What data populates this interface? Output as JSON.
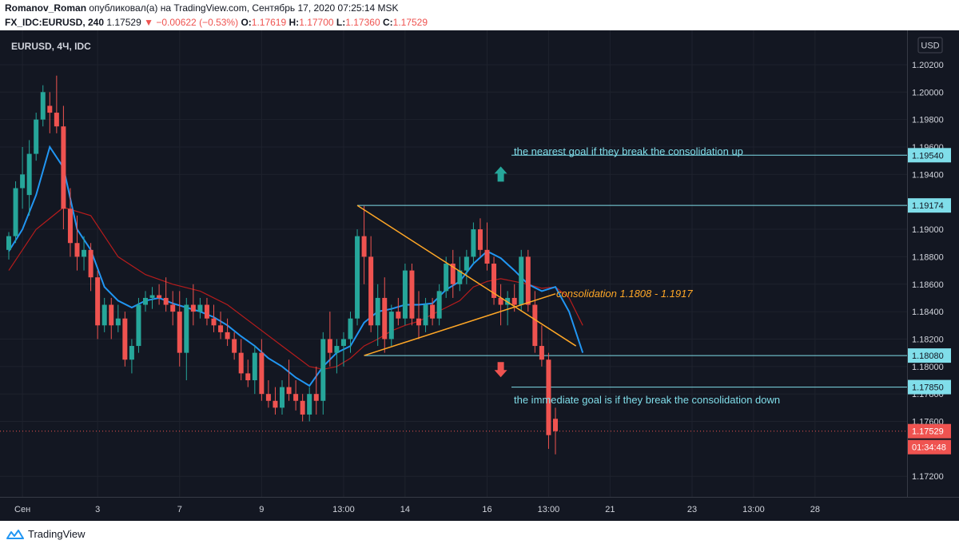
{
  "header": {
    "author": "Romanov_Roman",
    "published_text": "опубликовал(а) на TradingView.com, Сентябрь 17, 2020 07:25:14 MSK",
    "symbol": "FX_IDC:EURUSD, 240",
    "price": "1.17529",
    "change": "−0.00622 (−0.53%)",
    "o_label": "O:",
    "o_value": "1.17619",
    "h_label": "H:",
    "h_value": "1.17700",
    "l_label": "L:",
    "l_value": "1.17360",
    "c_label": "C:",
    "c_value": "1.17529"
  },
  "legend": {
    "title": "EURUSD, 4Ч, IDC"
  },
  "currency_button": "USD",
  "footer": {
    "brand": "TradingView"
  },
  "annotations": {
    "upper_goal_text": "the nearest goal if they break the consolidation up",
    "lower_goal_text": "the immediate goal is if they break the consolidation down",
    "consolidation_text": "consolidation 1.1808 - 1.1917"
  },
  "colors": {
    "background": "#131722",
    "bull": "#26a69a",
    "bear": "#ef5350",
    "ma_fast": "#2196f3",
    "ma_slow": "#b71c1c",
    "level_line": "#80deea",
    "triangle": "#ffa726",
    "arrow_up": "#26a69a",
    "arrow_down": "#ef5350"
  },
  "chart_data": {
    "type": "candlestick",
    "title": "EURUSD, 4Ч, IDC",
    "ylim": [
      1.1705,
      1.2045
    ],
    "y_ticks": [
      "1.20200",
      "1.20000",
      "1.19800",
      "1.19600",
      "1.19400",
      "1.19000",
      "1.18800",
      "1.18600",
      "1.18400",
      "1.18200",
      "1.18000",
      "1.17800",
      "1.17600",
      "1.17200"
    ],
    "x_ticks": [
      {
        "label": "Сен",
        "index": 2
      },
      {
        "label": "3",
        "index": 13
      },
      {
        "label": "7",
        "index": 25
      },
      {
        "label": "9",
        "index": 37
      },
      {
        "label": "13:00",
        "index": 49
      },
      {
        "label": "14",
        "index": 58
      },
      {
        "label": "16",
        "index": 70
      },
      {
        "label": "13:00",
        "index": 79
      },
      {
        "label": "21",
        "index": 88
      },
      {
        "label": "23",
        "index": 100
      },
      {
        "label": "13:00",
        "index": 109
      },
      {
        "label": "28",
        "index": 118
      }
    ],
    "price_levels": [
      {
        "label": "1.19540",
        "value": 1.1954,
        "style": "line"
      },
      {
        "label": "1.19174",
        "value": 1.19174,
        "style": "line"
      },
      {
        "label": "1.18080",
        "value": 1.1808,
        "style": "line"
      },
      {
        "label": "1.17850",
        "value": 1.1785,
        "style": "line"
      },
      {
        "label": "1.17529",
        "value": 1.17529,
        "style": "current"
      }
    ],
    "countdown": "01:34:48",
    "candles": [
      [
        1.1885,
        1.1898,
        1.1878,
        1.1895
      ],
      [
        1.1895,
        1.1935,
        1.189,
        1.193
      ],
      [
        1.193,
        1.196,
        1.1915,
        1.194
      ],
      [
        1.1925,
        1.1965,
        1.191,
        1.1955
      ],
      [
        1.1955,
        1.1985,
        1.195,
        1.198
      ],
      [
        1.198,
        1.2005,
        1.1975,
        1.2
      ],
      [
        1.199,
        1.2,
        1.197,
        1.1985
      ],
      [
        1.1985,
        1.2012,
        1.197,
        1.1975
      ],
      [
        1.1975,
        1.199,
        1.19,
        1.1915
      ],
      [
        1.1915,
        1.193,
        1.188,
        1.189
      ],
      [
        1.189,
        1.191,
        1.187,
        1.188
      ],
      [
        1.188,
        1.1895,
        1.187,
        1.1885
      ],
      [
        1.1885,
        1.189,
        1.1855,
        1.1865
      ],
      [
        1.1865,
        1.187,
        1.182,
        1.183
      ],
      [
        1.183,
        1.185,
        1.1825,
        1.1845
      ],
      [
        1.1845,
        1.185,
        1.182,
        1.183
      ],
      [
        1.183,
        1.1845,
        1.1825,
        1.1835
      ],
      [
        1.1835,
        1.184,
        1.18,
        1.1805
      ],
      [
        1.1805,
        1.182,
        1.1795,
        1.1815
      ],
      [
        1.1815,
        1.185,
        1.181,
        1.1845
      ],
      [
        1.1845,
        1.1855,
        1.184,
        1.185
      ],
      [
        1.185,
        1.1858,
        1.1842,
        1.1852
      ],
      [
        1.1852,
        1.186,
        1.1845,
        1.185
      ],
      [
        1.185,
        1.1865,
        1.184,
        1.1845
      ],
      [
        1.1845,
        1.1855,
        1.183,
        1.184
      ],
      [
        1.184,
        1.1855,
        1.18,
        1.181
      ],
      [
        1.181,
        1.185,
        1.179,
        1.1845
      ],
      [
        1.1845,
        1.186,
        1.183,
        1.184
      ],
      [
        1.184,
        1.185,
        1.1835,
        1.1845
      ],
      [
        1.1845,
        1.185,
        1.183,
        1.1835
      ],
      [
        1.1835,
        1.1845,
        1.1825,
        1.183
      ],
      [
        1.183,
        1.184,
        1.182,
        1.1825
      ],
      [
        1.1825,
        1.1835,
        1.1815,
        1.182
      ],
      [
        1.182,
        1.1825,
        1.1805,
        1.181
      ],
      [
        1.181,
        1.182,
        1.179,
        1.1795
      ],
      [
        1.1795,
        1.1805,
        1.1785,
        1.179
      ],
      [
        1.179,
        1.1815,
        1.178,
        1.181
      ],
      [
        1.181,
        1.182,
        1.1775,
        1.178
      ],
      [
        1.178,
        1.179,
        1.177,
        1.1775
      ],
      [
        1.1775,
        1.1785,
        1.1765,
        1.177
      ],
      [
        1.177,
        1.179,
        1.1765,
        1.1785
      ],
      [
        1.1785,
        1.1805,
        1.1775,
        1.178
      ],
      [
        1.178,
        1.179,
        1.1768,
        1.1775
      ],
      [
        1.1775,
        1.178,
        1.176,
        1.1765
      ],
      [
        1.1765,
        1.1785,
        1.176,
        1.178
      ],
      [
        1.178,
        1.18,
        1.1765,
        1.1775
      ],
      [
        1.1775,
        1.1825,
        1.1765,
        1.182
      ],
      [
        1.182,
        1.184,
        1.18,
        1.181
      ],
      [
        1.181,
        1.182,
        1.1795,
        1.1815
      ],
      [
        1.1815,
        1.1825,
        1.18,
        1.182
      ],
      [
        1.182,
        1.184,
        1.181,
        1.1835
      ],
      [
        1.1835,
        1.19,
        1.183,
        1.1895
      ],
      [
        1.1895,
        1.1917,
        1.186,
        1.188
      ],
      [
        1.188,
        1.1895,
        1.1825,
        1.183
      ],
      [
        1.183,
        1.186,
        1.1815,
        1.185
      ],
      [
        1.185,
        1.1865,
        1.181,
        1.182
      ],
      [
        1.182,
        1.1845,
        1.1815,
        1.184
      ],
      [
        1.184,
        1.185,
        1.183,
        1.1835
      ],
      [
        1.1835,
        1.1875,
        1.183,
        1.187
      ],
      [
        1.187,
        1.1875,
        1.183,
        1.1835
      ],
      [
        1.1835,
        1.1855,
        1.182,
        1.183
      ],
      [
        1.183,
        1.185,
        1.1825,
        1.1845
      ],
      [
        1.1845,
        1.185,
        1.183,
        1.1835
      ],
      [
        1.1835,
        1.186,
        1.183,
        1.1855
      ],
      [
        1.1855,
        1.188,
        1.185,
        1.1875
      ],
      [
        1.1875,
        1.1885,
        1.185,
        1.186
      ],
      [
        1.186,
        1.188,
        1.1855,
        1.187
      ],
      [
        1.187,
        1.1885,
        1.186,
        1.188
      ],
      [
        1.188,
        1.1905,
        1.1875,
        1.19
      ],
      [
        1.19,
        1.1908,
        1.188,
        1.1885
      ],
      [
        1.1885,
        1.1905,
        1.187,
        1.1875
      ],
      [
        1.1875,
        1.188,
        1.1845,
        1.185
      ],
      [
        1.185,
        1.186,
        1.183,
        1.1845
      ],
      [
        1.1845,
        1.1855,
        1.183,
        1.185
      ],
      [
        1.185,
        1.186,
        1.184,
        1.1845
      ],
      [
        1.1845,
        1.1885,
        1.184,
        1.188
      ],
      [
        1.188,
        1.1885,
        1.184,
        1.1845
      ],
      [
        1.1845,
        1.1855,
        1.181,
        1.1815
      ],
      [
        1.1815,
        1.183,
        1.18,
        1.1805
      ],
      [
        1.1805,
        1.181,
        1.174,
        1.175
      ],
      [
        1.17619,
        1.177,
        1.1736,
        1.17529
      ]
    ],
    "ma_fast": [
      [
        0,
        1.1884
      ],
      [
        2,
        1.19
      ],
      [
        4,
        1.1925
      ],
      [
        6,
        1.196
      ],
      [
        8,
        1.1945
      ],
      [
        10,
        1.19
      ],
      [
        12,
        1.1885
      ],
      [
        14,
        1.1858
      ],
      [
        16,
        1.1848
      ],
      [
        18,
        1.1843
      ],
      [
        20,
        1.1848
      ],
      [
        22,
        1.185
      ],
      [
        24,
        1.1846
      ],
      [
        26,
        1.1843
      ],
      [
        28,
        1.184
      ],
      [
        30,
        1.1836
      ],
      [
        32,
        1.183
      ],
      [
        34,
        1.1822
      ],
      [
        36,
        1.1815
      ],
      [
        38,
        1.1806
      ],
      [
        40,
        1.18
      ],
      [
        42,
        1.1792
      ],
      [
        44,
        1.1786
      ],
      [
        46,
        1.18
      ],
      [
        48,
        1.181
      ],
      [
        50,
        1.1815
      ],
      [
        52,
        1.1832
      ],
      [
        54,
        1.184
      ],
      [
        56,
        1.1842
      ],
      [
        58,
        1.1845
      ],
      [
        60,
        1.1845
      ],
      [
        62,
        1.1846
      ],
      [
        64,
        1.1856
      ],
      [
        66,
        1.1862
      ],
      [
        68,
        1.1875
      ],
      [
        70,
        1.1884
      ],
      [
        72,
        1.1879
      ],
      [
        74,
        1.187
      ],
      [
        76,
        1.186
      ],
      [
        78,
        1.1855
      ],
      [
        80,
        1.1858
      ],
      [
        82,
        1.184
      ],
      [
        84,
        1.181
      ]
    ],
    "ma_slow": [
      [
        0,
        1.187
      ],
      [
        4,
        1.19
      ],
      [
        8,
        1.1916
      ],
      [
        12,
        1.191
      ],
      [
        16,
        1.188
      ],
      [
        20,
        1.1867
      ],
      [
        24,
        1.186
      ],
      [
        28,
        1.1855
      ],
      [
        32,
        1.1845
      ],
      [
        36,
        1.183
      ],
      [
        40,
        1.1815
      ],
      [
        44,
        1.18
      ],
      [
        46,
        1.1798
      ],
      [
        48,
        1.18
      ],
      [
        50,
        1.1806
      ],
      [
        52,
        1.1815
      ],
      [
        54,
        1.182
      ],
      [
        56,
        1.1826
      ],
      [
        58,
        1.183
      ],
      [
        60,
        1.1833
      ],
      [
        62,
        1.1838
      ],
      [
        64,
        1.1843
      ],
      [
        66,
        1.1848
      ],
      [
        68,
        1.1858
      ],
      [
        70,
        1.1862
      ],
      [
        72,
        1.1864
      ],
      [
        74,
        1.1862
      ],
      [
        76,
        1.186
      ],
      [
        78,
        1.1857
      ],
      [
        80,
        1.1858
      ],
      [
        82,
        1.185
      ],
      [
        84,
        1.183
      ]
    ],
    "triangle": {
      "upper": [
        [
          51,
          1.19174
        ],
        [
          83,
          1.1815
        ]
      ],
      "lower": [
        [
          52,
          1.1808
        ],
        [
          80,
          1.1853
        ]
      ],
      "top_hline": [
        [
          51,
          1.19174
        ]
      ],
      "bottom_hline": [
        [
          52,
          1.1808
        ]
      ]
    },
    "arrows": [
      {
        "direction": "up",
        "index": 72,
        "value": 1.194
      },
      {
        "direction": "down",
        "index": 72,
        "value": 1.1798
      }
    ]
  }
}
